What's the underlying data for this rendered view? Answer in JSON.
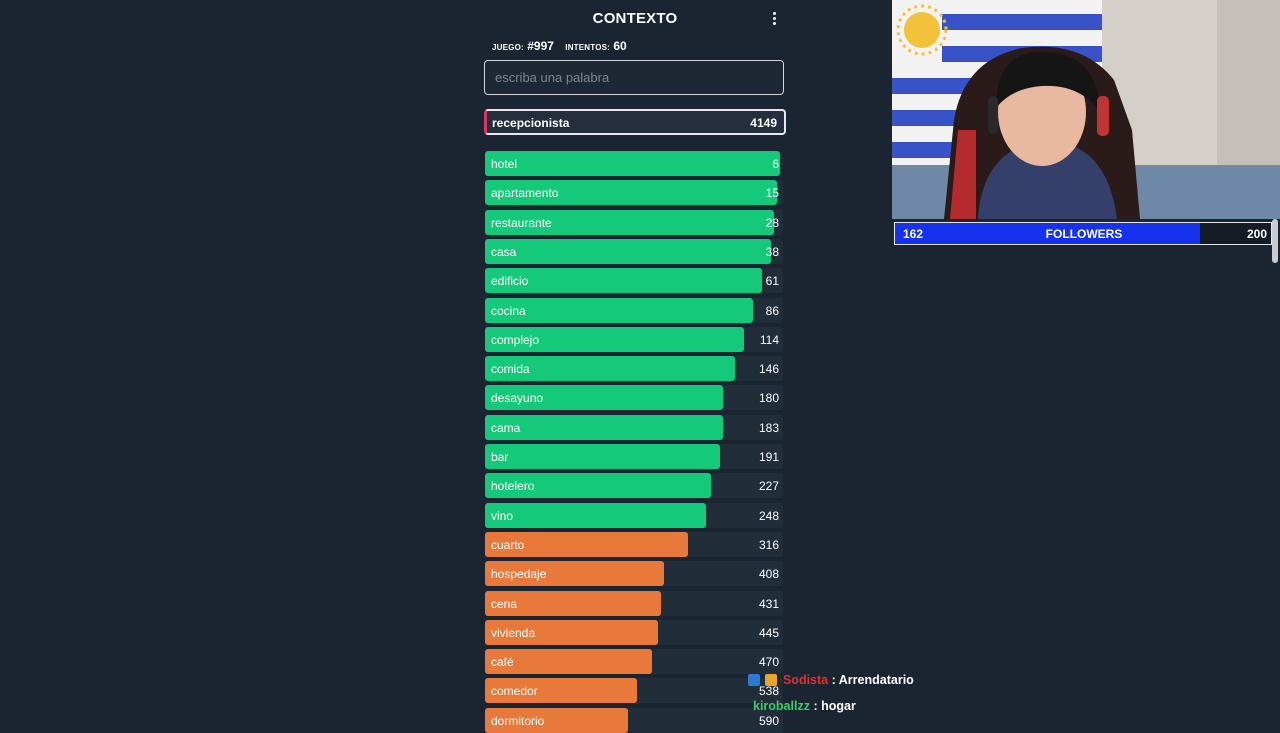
{
  "game": {
    "title": "CONTEXTO",
    "juego_label": "JUEGO:",
    "juego_value": "#997",
    "intentos_label": "INTENTOS:",
    "intentos_value": "60",
    "input_placeholder": "escriba una palabra",
    "last_guess": {
      "word": "recepcionista",
      "rank": "4149"
    },
    "guesses": [
      {
        "word": "hotel",
        "rank": "6",
        "level": 0.99,
        "color": "#14c97a"
      },
      {
        "word": "apartamento",
        "rank": "15",
        "level": 0.98,
        "color": "#14c97a"
      },
      {
        "word": "restaurante",
        "rank": "28",
        "level": 0.97,
        "color": "#14c97a"
      },
      {
        "word": "casa",
        "rank": "38",
        "level": 0.96,
        "color": "#14c97a"
      },
      {
        "word": "edificio",
        "rank": "61",
        "level": 0.93,
        "color": "#14c97a"
      },
      {
        "word": "cocina",
        "rank": "86",
        "level": 0.9,
        "color": "#14c97a"
      },
      {
        "word": "complejo",
        "rank": "114",
        "level": 0.87,
        "color": "#14c97a"
      },
      {
        "word": "comida",
        "rank": "146",
        "level": 0.84,
        "color": "#14c97a"
      },
      {
        "word": "desayuno",
        "rank": "180",
        "level": 0.8,
        "color": "#14c97a"
      },
      {
        "word": "cama",
        "rank": "183",
        "level": 0.8,
        "color": "#14c97a"
      },
      {
        "word": "bar",
        "rank": "191",
        "level": 0.79,
        "color": "#14c97a"
      },
      {
        "word": "hotelero",
        "rank": "227",
        "level": 0.76,
        "color": "#14c97a"
      },
      {
        "word": "vino",
        "rank": "248",
        "level": 0.74,
        "color": "#14c97a"
      },
      {
        "word": "cuarto",
        "rank": "316",
        "level": 0.68,
        "color": "#e8793a"
      },
      {
        "word": "hospedaje",
        "rank": "408",
        "level": 0.6,
        "color": "#e8793a"
      },
      {
        "word": "cena",
        "rank": "431",
        "level": 0.59,
        "color": "#e8793a"
      },
      {
        "word": "vivienda",
        "rank": "445",
        "level": 0.58,
        "color": "#e8793a"
      },
      {
        "word": "café",
        "rank": "470",
        "level": 0.56,
        "color": "#e8793a"
      },
      {
        "word": "comedor",
        "rank": "538",
        "level": 0.51,
        "color": "#e8793a"
      },
      {
        "word": "dormitorio",
        "rank": "590",
        "level": 0.48,
        "color": "#e8793a"
      }
    ]
  },
  "stream": {
    "followers": {
      "current": "162",
      "label": "FOLLOWERS",
      "goal": "200",
      "progress": 0.81
    },
    "chat": [
      {
        "user": "Sodista",
        "user_color": "#e0312f",
        "message": ": Arrendatario"
      },
      {
        "user": "kiroballzz",
        "user_color": "#37cf65",
        "message": ": hogar"
      }
    ]
  }
}
